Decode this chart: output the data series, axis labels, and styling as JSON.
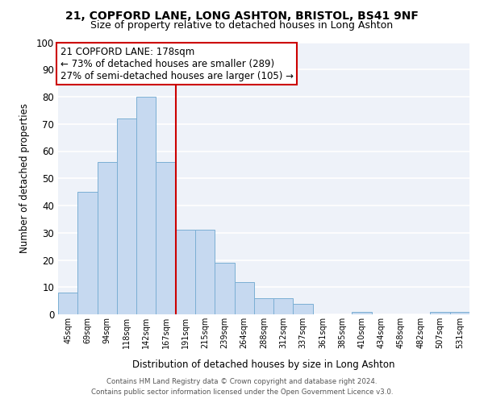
{
  "title1": "21, COPFORD LANE, LONG ASHTON, BRISTOL, BS41 9NF",
  "title2": "Size of property relative to detached houses in Long Ashton",
  "xlabel": "Distribution of detached houses by size in Long Ashton",
  "ylabel": "Number of detached properties",
  "bar_labels": [
    "45sqm",
    "69sqm",
    "94sqm",
    "118sqm",
    "142sqm",
    "167sqm",
    "191sqm",
    "215sqm",
    "239sqm",
    "264sqm",
    "288sqm",
    "312sqm",
    "337sqm",
    "361sqm",
    "385sqm",
    "410sqm",
    "434sqm",
    "458sqm",
    "482sqm",
    "507sqm",
    "531sqm"
  ],
  "bar_values": [
    8,
    45,
    56,
    72,
    80,
    56,
    31,
    31,
    19,
    12,
    6,
    6,
    4,
    0,
    0,
    1,
    0,
    0,
    0,
    1,
    1
  ],
  "bar_color": "#c6d9f0",
  "bar_edge_color": "#7bafd4",
  "vline_x": 5.5,
  "vline_color": "#cc0000",
  "annotation_title": "21 COPFORD LANE: 178sqm",
  "annotation_line1": "← 73% of detached houses are smaller (289)",
  "annotation_line2": "27% of semi-detached houses are larger (105) →",
  "annotation_box_color": "#ffffff",
  "annotation_box_edge": "#cc0000",
  "ylim": [
    0,
    100
  ],
  "yticks": [
    0,
    10,
    20,
    30,
    40,
    50,
    60,
    70,
    80,
    90,
    100
  ],
  "footnote1": "Contains HM Land Registry data © Crown copyright and database right 2024.",
  "footnote2": "Contains public sector information licensed under the Open Government Licence v3.0.",
  "bg_color": "#ffffff",
  "plot_bg_color": "#eef2f9"
}
